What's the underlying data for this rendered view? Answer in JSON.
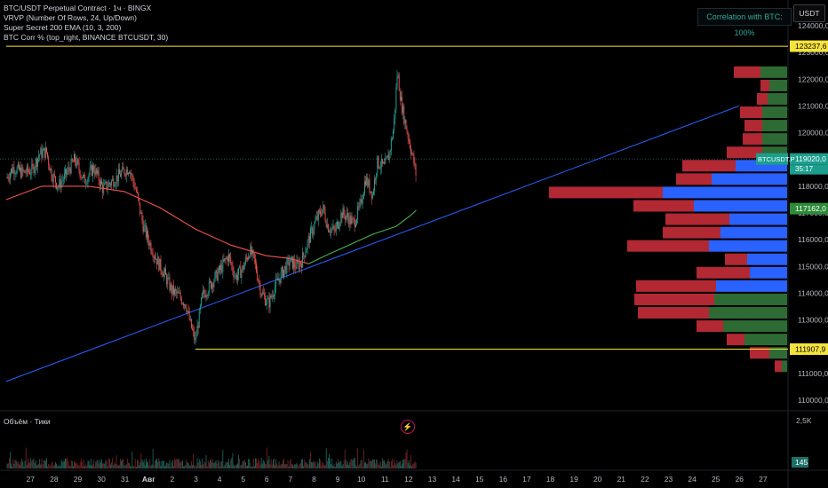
{
  "legend": {
    "line1": "BTC/USDT Perpetual Contract · 1ч · BINGX",
    "line2": "VRVP (Number Of Rows, 24, Up/Down)",
    "line3": "Super Secret 200 EMA (10, 3, 200)",
    "line4": "BTC Corr % (top_right, BINANCE BTCUSDT, 30)"
  },
  "correlation_label": "Correlation with BTC: 100%",
  "currency_button": "USDT",
  "volume_label": "Объём · Тики",
  "lightning_icon": "lightning-icon",
  "colors": {
    "bull": "#26a69a",
    "bear": "#ef5350",
    "ema_fast": "#ef5350",
    "ema_slow": "#4caf50",
    "trend": "#2962ff",
    "level": "#f5e33c",
    "vp_up": "#2962ff",
    "vp_down": "#b22833",
    "vp_green": "#2e6b34"
  },
  "chart_data": {
    "type": "candlestick",
    "title": "BTC/USDT Perpetual Contract · 1ч · BINGX",
    "y_axis": {
      "range": [
        109700,
        124700
      ],
      "ticks": [
        110000,
        111000,
        112000,
        113000,
        114000,
        115000,
        116000,
        117000,
        118000,
        119000,
        120000,
        121000,
        122000,
        123000,
        124000
      ]
    },
    "y_tick_labels": [
      "110000,0",
      "111000,0",
      "112000,0",
      "113000,0",
      "114000,0",
      "115000,0",
      "116000,0",
      "117000,0",
      "118000,0",
      "119000,0",
      "120000,0",
      "121000,0",
      "122000,0",
      "123000,0",
      "124000,0"
    ],
    "x_axis": {
      "day_range": [
        26.5,
        28
      ],
      "ticks": [
        27,
        28,
        29,
        30,
        31,
        32,
        33,
        34,
        35,
        36,
        37,
        38,
        39,
        40,
        41,
        42,
        43,
        44,
        45,
        46,
        47,
        48,
        49,
        50,
        51,
        52,
        53,
        54,
        55,
        56,
        57,
        58
      ]
    },
    "x_tick_labels": [
      "27",
      "28",
      "29",
      "30",
      "31",
      "Авг",
      "2",
      "3",
      "4",
      "5",
      "6",
      "7",
      "8",
      "9",
      "10",
      "11",
      "12",
      "13",
      "14",
      "15",
      "16",
      "17",
      "18",
      "19",
      "20",
      "21",
      "22",
      "23",
      "24",
      "25",
      "26",
      "27"
    ],
    "price_path": [
      [
        26.5,
        118300
      ],
      [
        26.8,
        118700
      ],
      [
        27.2,
        118500
      ],
      [
        27.6,
        118600
      ],
      [
        27.9,
        119200
      ],
      [
        28.2,
        119300
      ],
      [
        28.4,
        118500
      ],
      [
        28.7,
        118000
      ],
      [
        29.0,
        118400
      ],
      [
        29.4,
        119000
      ],
      [
        29.8,
        118200
      ],
      [
        30.2,
        118700
      ],
      [
        30.6,
        117900
      ],
      [
        31.0,
        118200
      ],
      [
        31.4,
        118500
      ],
      [
        31.7,
        118700
      ],
      [
        32.0,
        117800
      ],
      [
        32.3,
        116500
      ],
      [
        32.6,
        115800
      ],
      [
        32.9,
        115200
      ],
      [
        33.2,
        114700
      ],
      [
        33.5,
        114100
      ],
      [
        33.8,
        113900
      ],
      [
        34.1,
        113600
      ],
      [
        34.3,
        112800
      ],
      [
        34.5,
        112200
      ],
      [
        34.8,
        113900
      ],
      [
        35.2,
        114400
      ],
      [
        35.5,
        114800
      ],
      [
        35.9,
        115400
      ],
      [
        36.2,
        114600
      ],
      [
        36.5,
        114900
      ],
      [
        36.8,
        115600
      ],
      [
        37.0,
        115200
      ],
      [
        37.3,
        114000
      ],
      [
        37.6,
        113600
      ],
      [
        37.9,
        114300
      ],
      [
        38.2,
        114800
      ],
      [
        38.5,
        115200
      ],
      [
        38.8,
        115000
      ],
      [
        39.0,
        115200
      ],
      [
        39.3,
        116000
      ],
      [
        39.6,
        116700
      ],
      [
        39.9,
        117200
      ],
      [
        40.1,
        116500
      ],
      [
        40.4,
        116300
      ],
      [
        40.7,
        117000
      ],
      [
        41.0,
        116800
      ],
      [
        41.2,
        116600
      ],
      [
        41.5,
        117300
      ],
      [
        41.7,
        118300
      ],
      [
        42.0,
        117700
      ],
      [
        42.2,
        118900
      ],
      [
        42.5,
        118700
      ],
      [
        42.7,
        119200
      ],
      [
        42.9,
        120200
      ],
      [
        43.05,
        122300
      ],
      [
        43.2,
        121200
      ],
      [
        43.4,
        120300
      ],
      [
        43.55,
        119700
      ],
      [
        43.7,
        119100
      ],
      [
        43.85,
        118400
      ]
    ],
    "ema_fast": [
      [
        26.5,
        117500
      ],
      [
        28.0,
        118000
      ],
      [
        30.0,
        118000
      ],
      [
        31.5,
        117800
      ],
      [
        33.0,
        117200
      ],
      [
        34.5,
        116400
      ],
      [
        36.0,
        115800
      ],
      [
        37.5,
        115400
      ],
      [
        38.5,
        115300
      ],
      [
        39.3,
        115100
      ]
    ],
    "ema_slow": [
      [
        39.3,
        115100
      ],
      [
        40.0,
        115400
      ],
      [
        41.0,
        115800
      ],
      [
        42.0,
        116200
      ],
      [
        43.0,
        116500
      ],
      [
        43.6,
        116900
      ],
      [
        43.85,
        117100
      ]
    ],
    "levels": [
      {
        "price": 123237.6,
        "label": "123237,6",
        "from_day": 26.5
      },
      {
        "price": 111907.9,
        "label": "111907,9",
        "from_day": 34.5
      }
    ],
    "last_price": {
      "price": 119020,
      "label": "119020,0",
      "ticker": "BTCUSDT.P",
      "countdown": "35:17"
    },
    "ema_price": {
      "price": 117162,
      "label": "117162,0"
    },
    "trendline": [
      [
        26.5,
        110700
      ],
      [
        57.5,
        121000
      ]
    ],
    "volume_profile": [
      {
        "price": 122250,
        "up": 0,
        "down": 30,
        "green": 30
      },
      {
        "price": 121750,
        "up": 0,
        "down": 10,
        "green": 20
      },
      {
        "price": 121250,
        "up": 0,
        "down": 12,
        "green": 22
      },
      {
        "price": 120750,
        "up": 0,
        "down": 25,
        "green": 28
      },
      {
        "price": 120250,
        "up": 0,
        "down": 20,
        "green": 28
      },
      {
        "price": 119750,
        "up": 0,
        "down": 22,
        "green": 28
      },
      {
        "price": 119250,
        "up": 0,
        "down": 40,
        "green": 28
      },
      {
        "price": 118750,
        "up": 58,
        "down": 60,
        "green": 0
      },
      {
        "price": 118250,
        "up": 85,
        "down": 40,
        "green": 0
      },
      {
        "price": 117750,
        "up": 140,
        "down": 128,
        "green": 0
      },
      {
        "price": 117250,
        "up": 105,
        "down": 68,
        "green": 0
      },
      {
        "price": 116750,
        "up": 65,
        "down": 72,
        "green": 0
      },
      {
        "price": 116250,
        "up": 75,
        "down": 65,
        "green": 0
      },
      {
        "price": 115750,
        "up": 88,
        "down": 92,
        "green": 0
      },
      {
        "price": 115250,
        "up": 45,
        "down": 25,
        "green": 0
      },
      {
        "price": 114750,
        "up": 42,
        "down": 60,
        "green": 0
      },
      {
        "price": 114250,
        "up": 80,
        "down": 90,
        "green": 0
      },
      {
        "price": 113750,
        "up": 0,
        "down": 90,
        "green": 82
      },
      {
        "price": 113250,
        "up": 0,
        "down": 80,
        "green": 88
      },
      {
        "price": 112750,
        "up": 0,
        "down": 30,
        "green": 72
      },
      {
        "price": 112250,
        "up": 0,
        "down": 20,
        "green": 48
      },
      {
        "price": 111750,
        "up": 0,
        "down": 22,
        "green": 20
      },
      {
        "price": 111250,
        "up": 0,
        "down": 8,
        "green": 6
      }
    ],
    "volume_axis": {
      "label_top": "2,5K",
      "label_current": "145"
    }
  }
}
